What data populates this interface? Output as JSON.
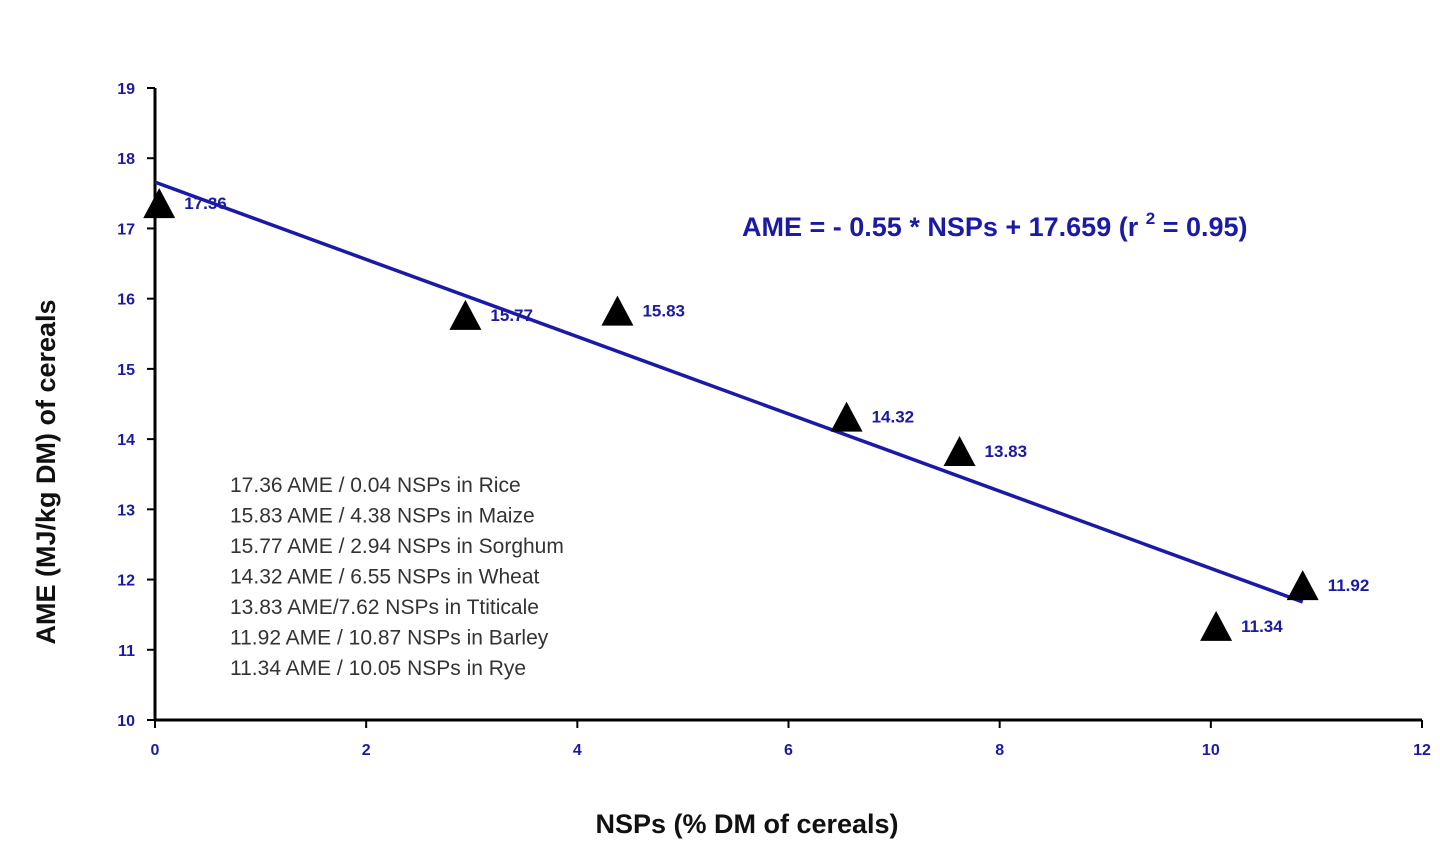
{
  "chart_data": {
    "type": "scatter",
    "title": "",
    "xlabel": "NSPs (% DM of cereals)",
    "ylabel": "AME (MJ/kg DM) of cereals",
    "xlim": [
      0,
      12
    ],
    "ylim": [
      10,
      19
    ],
    "xticks": [
      "0",
      "2",
      "4",
      "6",
      "8",
      "10",
      "12"
    ],
    "yticks": [
      "10",
      "11",
      "12",
      "13",
      "14",
      "15",
      "16",
      "17",
      "18",
      "19"
    ],
    "grid": false,
    "series": [
      {
        "points": [
          {
            "x": 0.04,
            "y": 17.36,
            "label": "17.36"
          },
          {
            "x": 2.94,
            "y": 15.77,
            "label": "15.77"
          },
          {
            "x": 4.38,
            "y": 15.83,
            "label": "15.83"
          },
          {
            "x": 6.55,
            "y": 14.32,
            "label": "14.32"
          },
          {
            "x": 7.62,
            "y": 13.83,
            "label": "13.83"
          },
          {
            "x": 10.87,
            "y": 11.92,
            "label": "11.92"
          },
          {
            "x": 10.05,
            "y": 11.34,
            "label": "11.34"
          }
        ]
      }
    ],
    "trendline": {
      "slope": -0.55,
      "intercept": 17.659,
      "x_range": [
        0,
        10.87
      ]
    },
    "equation": {
      "main": "AME = - 0.55 * NSPs + 17.659 (r ",
      "sup": "2",
      "tail": " = 0.95)"
    },
    "annotations": [
      "17.36 AME / 0.04 NSPs in Rice",
      "15.83 AME / 4.38 NSPs in Maize",
      "15.77 AME / 2.94 NSPs in Sorghum",
      "14.32 AME / 6.55 NSPs in Wheat",
      "13.83 AME/7.62 NSPs in Ttiticale",
      "11.92 AME / 10.87 NSPs in Barley",
      "11.34 AME / 10.05 NSPs in Rye"
    ],
    "colors": {
      "accent": "#1a1aa6",
      "marker": "#000000",
      "axis": "#000000"
    }
  }
}
